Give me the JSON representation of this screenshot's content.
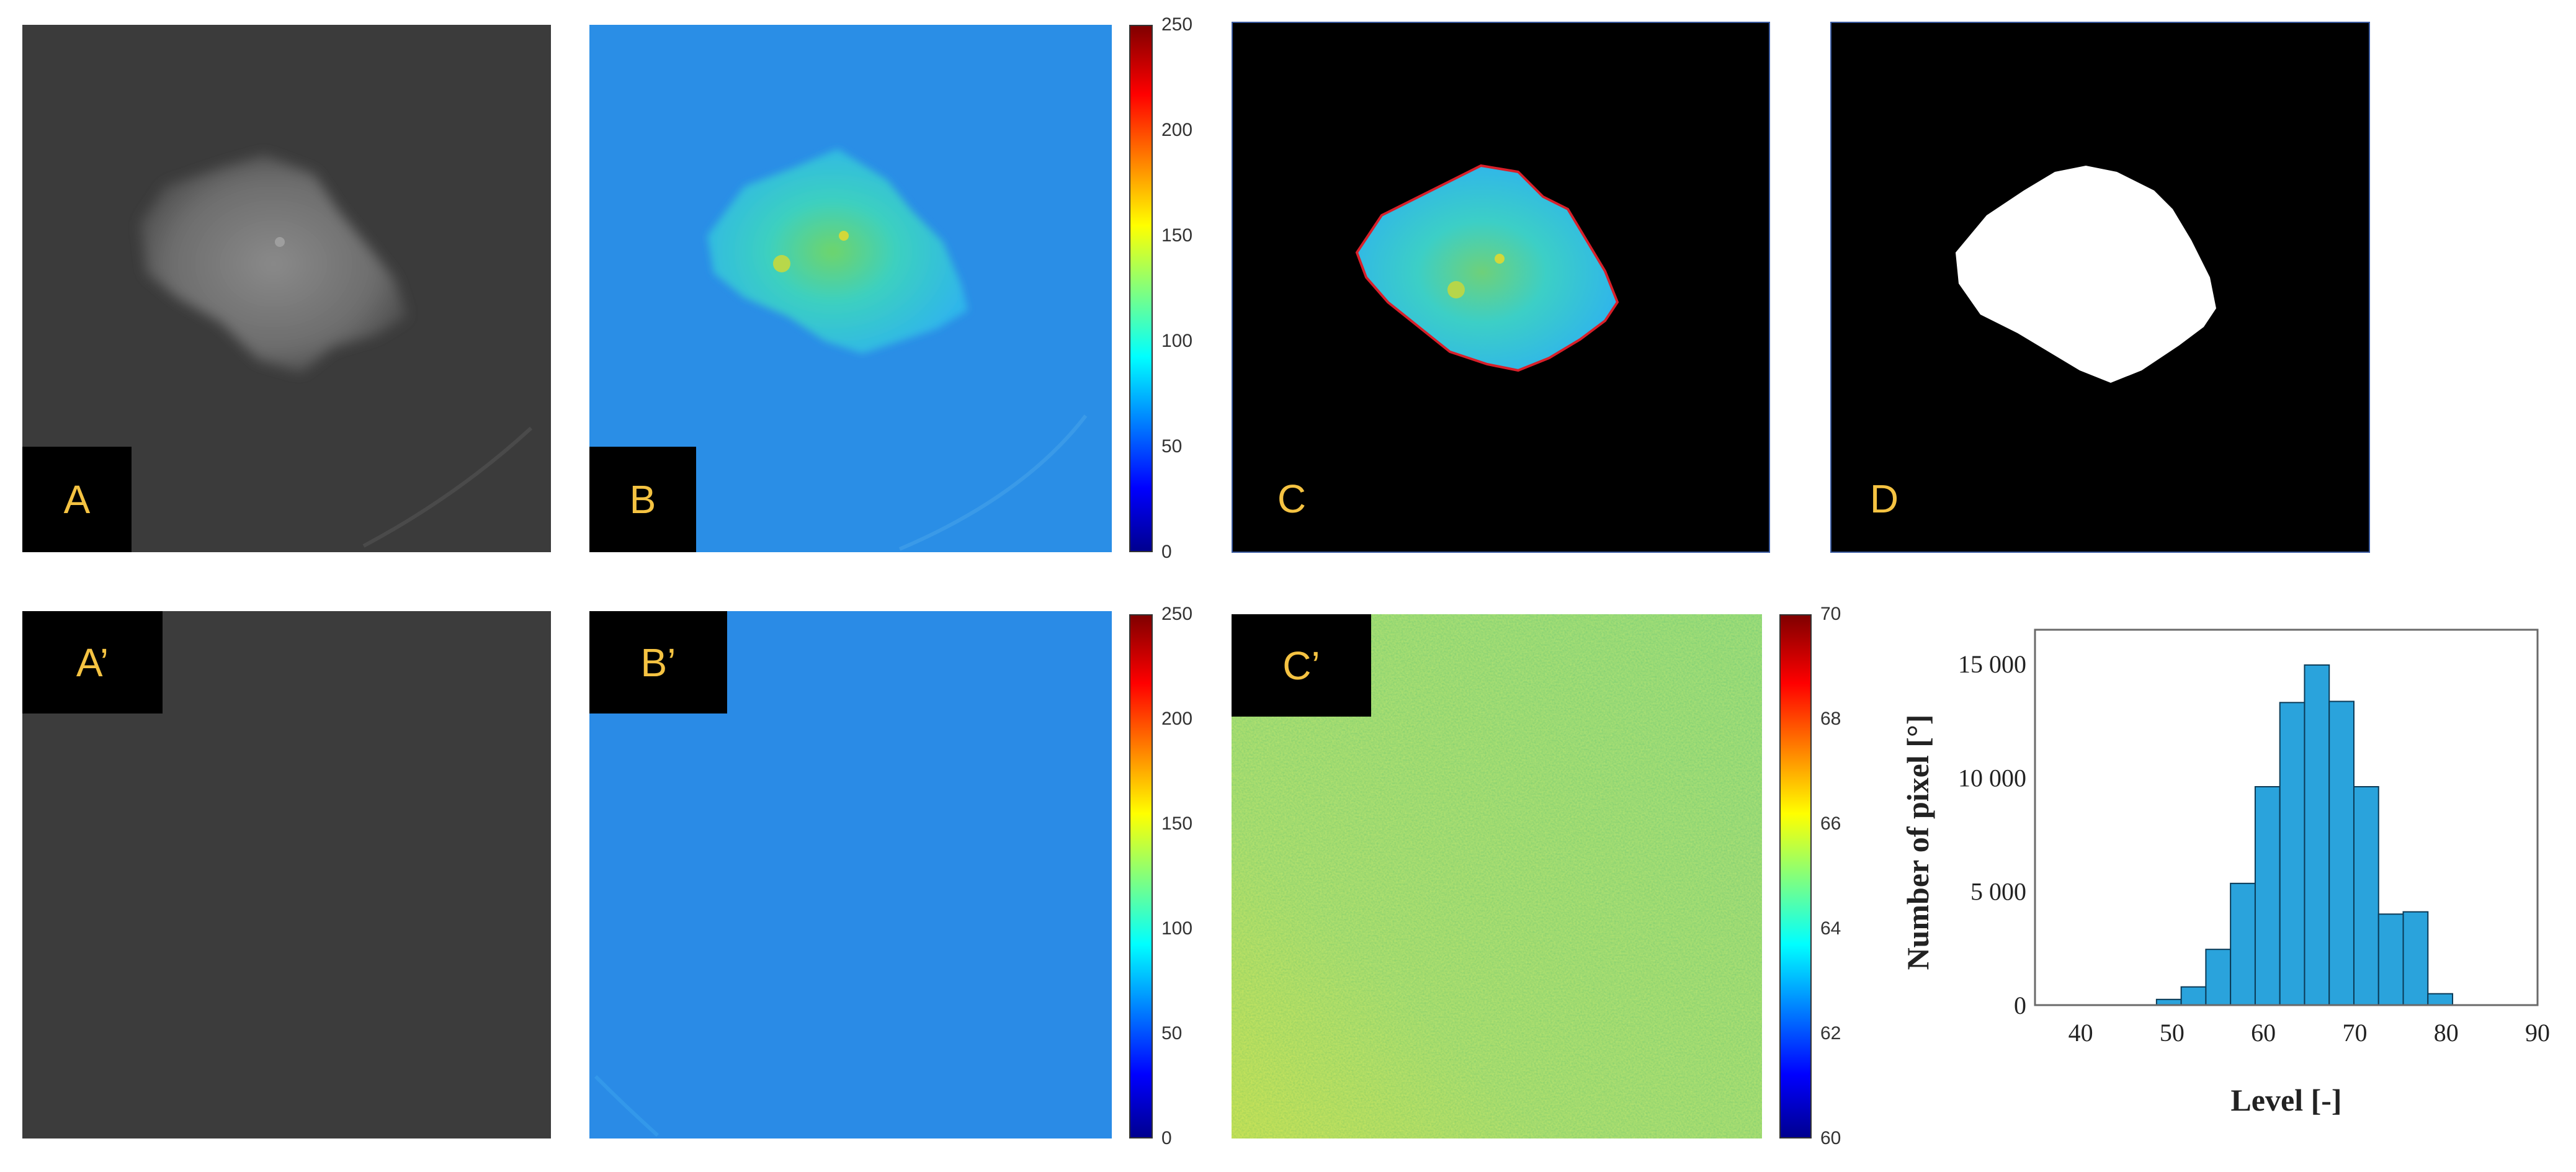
{
  "panels": {
    "A": "A",
    "B": "B",
    "C": "C",
    "D": "D",
    "Ap": "A’",
    "Bp": "B’",
    "Cp": "C’"
  },
  "colorbars": {
    "B": {
      "ticks": [
        "250",
        "200",
        "150",
        "100",
        "50",
        "0"
      ]
    },
    "Bp": {
      "ticks": [
        "250",
        "200",
        "150",
        "100",
        "50",
        "0"
      ]
    },
    "Cp": {
      "ticks": [
        "70",
        "68",
        "66",
        "64",
        "62",
        "60"
      ]
    }
  },
  "colors": {
    "grayscale_bg": "#3b3b3b",
    "jet_blue_bg": "#2a8ee6",
    "label_text": "#f5c342",
    "hist_bar": "#2aa3dc",
    "contour_red": "#d8202a"
  },
  "chart_data": {
    "type": "bar",
    "ylabel": "Number of pixel [°]",
    "xlabel": "Level [-]",
    "xlim": [
      35,
      90
    ],
    "ylim": [
      0,
      16500
    ],
    "xticks": [
      "40",
      "50",
      "60",
      "70",
      "80",
      "90"
    ],
    "xtick_values": [
      40,
      50,
      60,
      70,
      80,
      90
    ],
    "yticks": [
      "0",
      "5 000",
      "10 000",
      "15 000"
    ],
    "ytick_values": [
      0,
      5000,
      10000,
      15000
    ],
    "bin_width": 2.7,
    "bins": [
      48.3,
      51.0,
      53.7,
      56.4,
      59.1,
      61.8,
      64.5,
      67.2,
      69.9,
      72.6,
      75.3,
      78.0
    ],
    "values": [
      250,
      800,
      2450,
      5350,
      9600,
      13300,
      14950,
      13350,
      9600,
      4000,
      4100,
      500
    ]
  }
}
